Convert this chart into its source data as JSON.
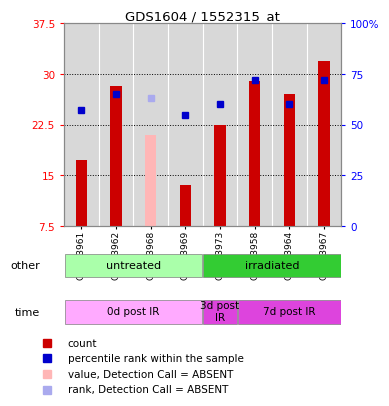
{
  "title": "GDS1604 / 1552315_at",
  "samples": [
    "GSM93961",
    "GSM93962",
    "GSM93968",
    "GSM93969",
    "GSM93973",
    "GSM93958",
    "GSM93964",
    "GSM93967"
  ],
  "bar_values": [
    17.2,
    28.2,
    21.0,
    13.5,
    22.5,
    29.0,
    27.0,
    32.0
  ],
  "bar_colors": [
    "#cc0000",
    "#cc0000",
    "#ffb6b6",
    "#cc0000",
    "#cc0000",
    "#cc0000",
    "#cc0000",
    "#cc0000"
  ],
  "rank_values": [
    57,
    65,
    63,
    55,
    60,
    72,
    60,
    72
  ],
  "rank_colors": [
    "#0000cc",
    "#0000cc",
    "#aaaaee",
    "#0000cc",
    "#0000cc",
    "#0000cc",
    "#0000cc",
    "#0000cc"
  ],
  "ylim_left": [
    7.5,
    37.5
  ],
  "ylim_right": [
    0,
    100
  ],
  "yticks_left": [
    7.5,
    15.0,
    22.5,
    30.0,
    37.5
  ],
  "yticks_right": [
    0,
    25,
    50,
    75,
    100
  ],
  "ytick_labels_left": [
    "7.5",
    "15",
    "22.5",
    "30",
    "37.5"
  ],
  "ytick_labels_right": [
    "0",
    "25",
    "50",
    "75",
    "100%"
  ],
  "group_other": [
    {
      "label": "untreated",
      "span": [
        0,
        4
      ],
      "color": "#aaffaa"
    },
    {
      "label": "irradiated",
      "span": [
        4,
        8
      ],
      "color": "#33cc33"
    }
  ],
  "group_time": [
    {
      "label": "0d post IR",
      "span": [
        0,
        4
      ],
      "color": "#ffaaff"
    },
    {
      "label": "3d post\nIR",
      "span": [
        4,
        5
      ],
      "color": "#dd44dd"
    },
    {
      "label": "7d post IR",
      "span": [
        5,
        8
      ],
      "color": "#dd44dd"
    }
  ],
  "legend": [
    {
      "label": "count",
      "color": "#cc0000"
    },
    {
      "label": "percentile rank within the sample",
      "color": "#0000cc"
    },
    {
      "label": "value, Detection Call = ABSENT",
      "color": "#ffb6b6"
    },
    {
      "label": "rank, Detection Call = ABSENT",
      "color": "#aaaaee"
    }
  ],
  "background_color": "#ffffff",
  "bar_bg_color": "#d8d8d8",
  "bar_width": 0.6
}
